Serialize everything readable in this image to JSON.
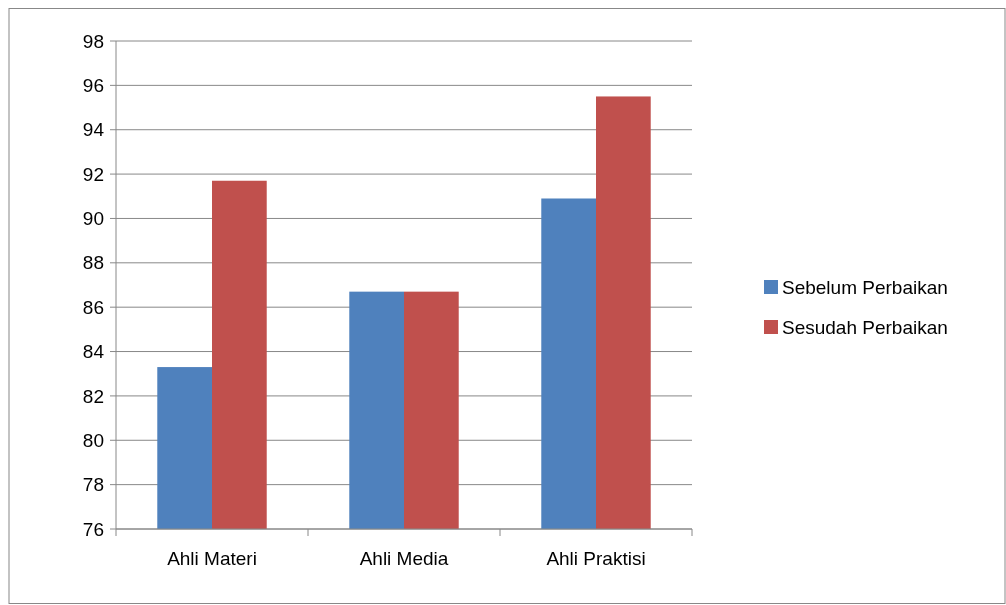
{
  "chart_data": {
    "type": "bar",
    "categories": [
      "Ahli Materi",
      "Ahli Media",
      "Ahli Praktisi"
    ],
    "series": [
      {
        "name": "Sebelum Perbaikan",
        "color": "#4f81bd",
        "values": [
          83.3,
          86.7,
          90.9
        ]
      },
      {
        "name": "Sesudah Perbaikan",
        "color": "#c0504d",
        "values": [
          91.7,
          86.7,
          95.5
        ]
      }
    ],
    "ylim": [
      76,
      98
    ],
    "yticks": [
      76,
      78,
      80,
      82,
      84,
      86,
      88,
      90,
      92,
      94,
      96,
      98
    ],
    "grid": "y",
    "legend": "right"
  }
}
